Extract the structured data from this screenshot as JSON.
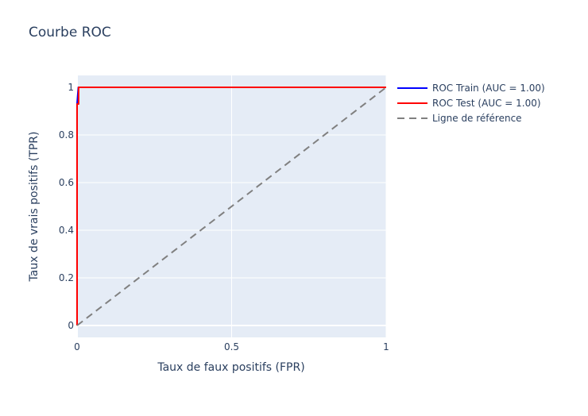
{
  "chart_data": {
    "type": "line",
    "title": "Courbe ROC",
    "xlabel": "Taux de faux positifs (FPR)",
    "ylabel": "Taux de vrais positifs (TPR)",
    "xlim": [
      0,
      1
    ],
    "ylim": [
      -0.05,
      1.05
    ],
    "x_ticks": [
      0,
      0.5,
      1
    ],
    "x_tick_labels": [
      "0",
      "0.5",
      "1"
    ],
    "y_ticks": [
      0,
      0.2,
      0.4,
      0.6,
      0.8,
      1
    ],
    "y_tick_labels": [
      "0",
      "0.2",
      "0.4",
      "0.6",
      "0.8",
      "1"
    ],
    "grid": true,
    "legend_position": "right",
    "colors": {
      "plot_background": "#e5ecf6",
      "grid": "#ffffff",
      "text": "#2a3f5f"
    },
    "series": [
      {
        "name": "ROC Train (AUC = 1.00)",
        "color": "#0000ff",
        "dash": "solid",
        "x": [
          0,
          0,
          0.004,
          1
        ],
        "y": [
          0,
          0.93,
          1,
          1
        ]
      },
      {
        "name": "ROC Test (AUC = 1.00)",
        "color": "#ff0000",
        "dash": "solid",
        "x": [
          0,
          0,
          0.005,
          0.005,
          1
        ],
        "y": [
          0,
          0.93,
          0.93,
          1,
          1
        ]
      },
      {
        "name": "Ligne de référence",
        "color": "#808080",
        "dash": "dash",
        "x": [
          0,
          1
        ],
        "y": [
          0,
          1
        ]
      }
    ]
  }
}
